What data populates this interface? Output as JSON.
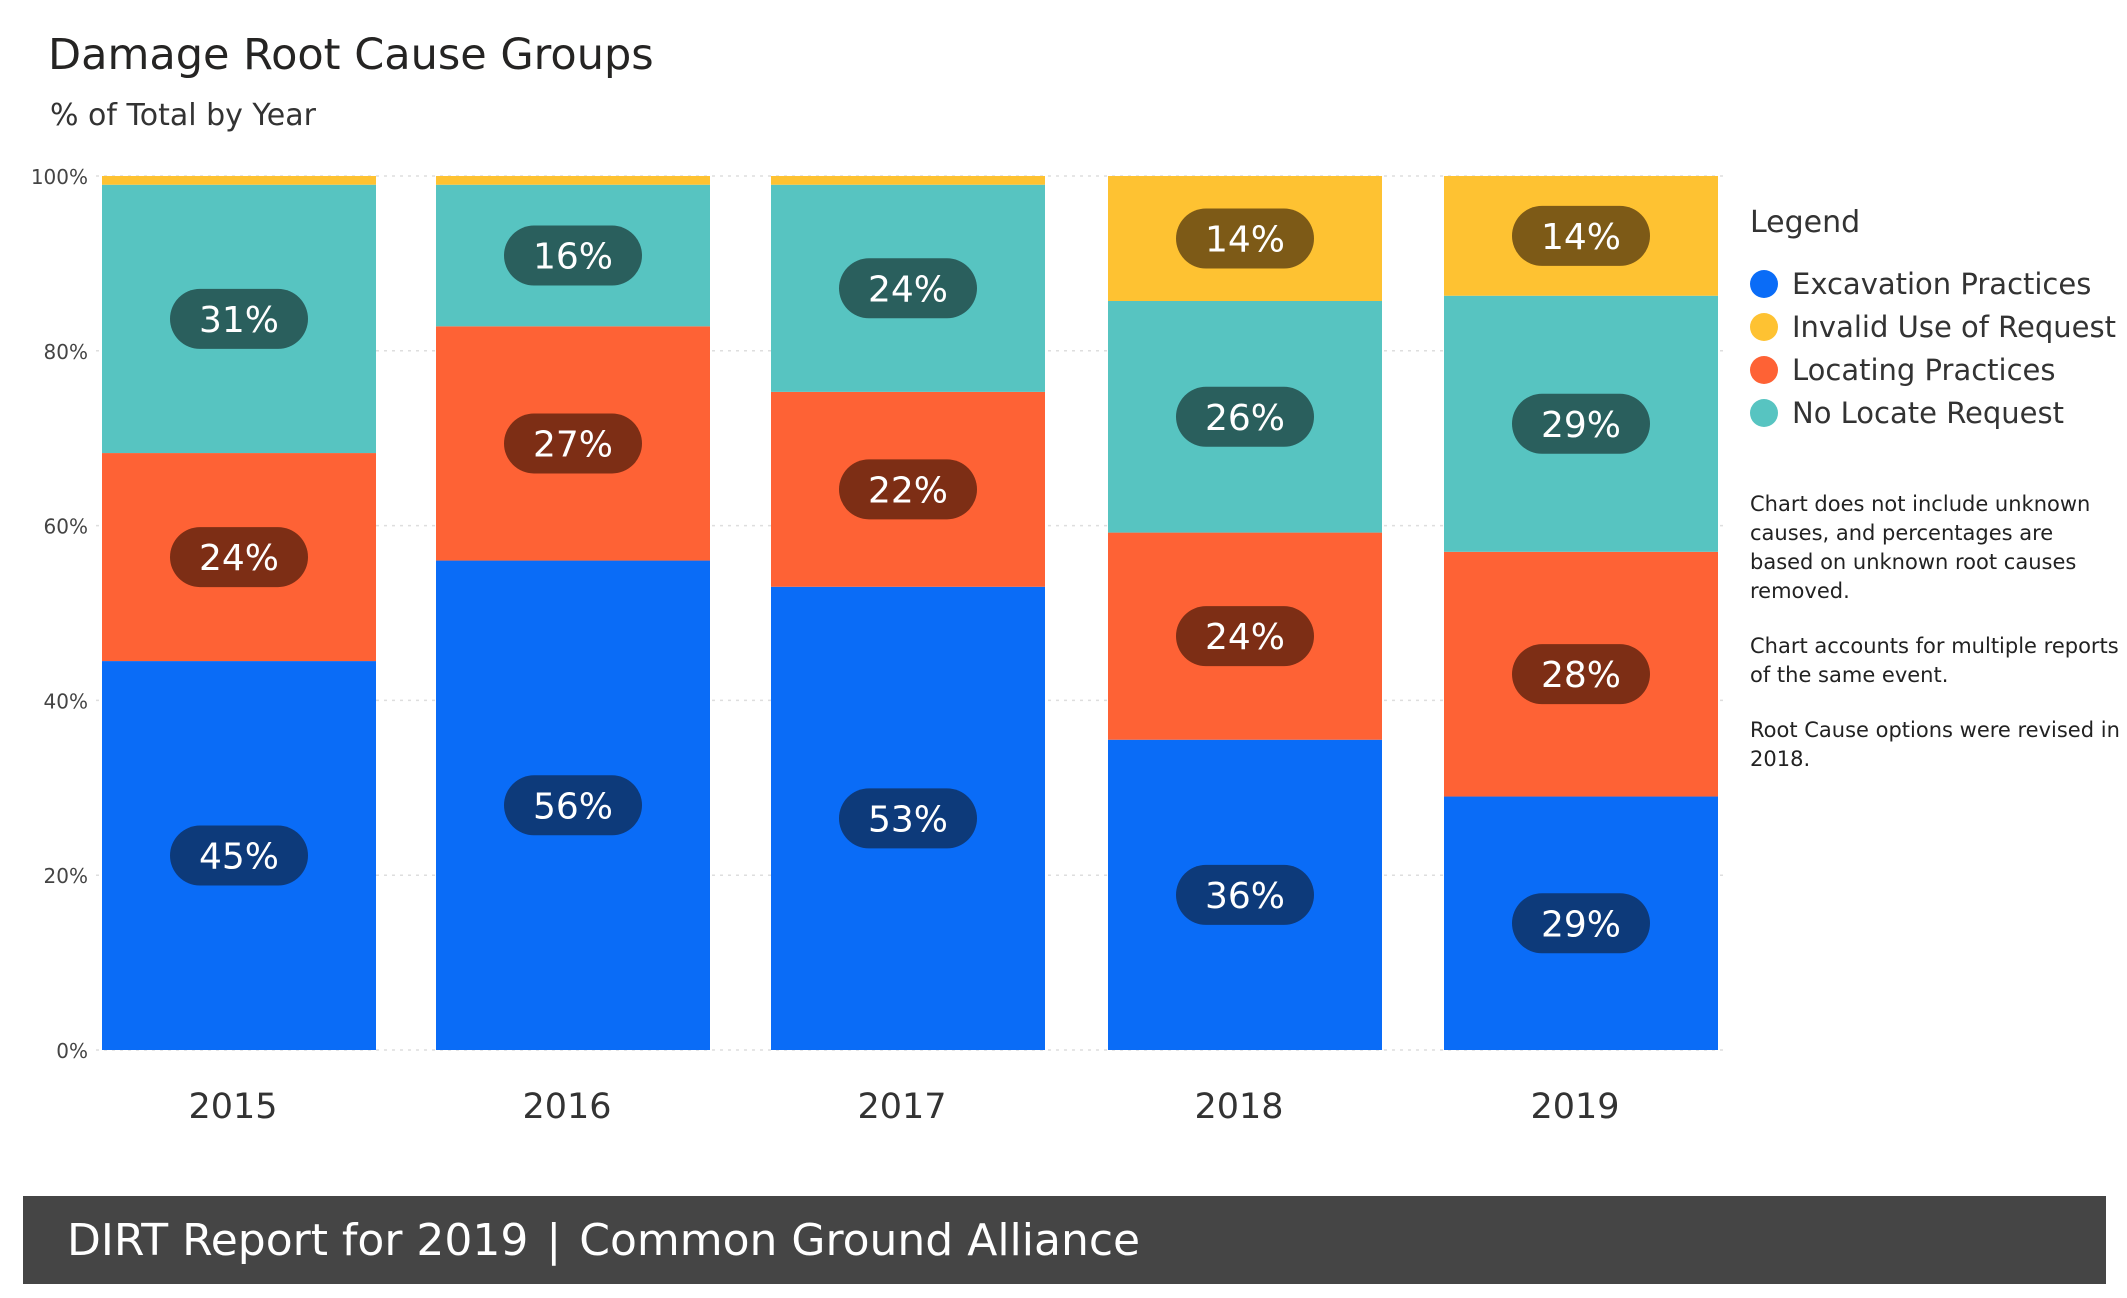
{
  "header": {
    "title": "Damage Root Cause Groups",
    "subtitle": "% of Total by Year"
  },
  "legend": {
    "title": "Legend",
    "items": [
      {
        "label": "Excavation Practices",
        "color": "#0a6cf7"
      },
      {
        "label": "Invalid Use of Request",
        "color": "#fec232"
      },
      {
        "label": "Locating Practices",
        "color": "#fe6235"
      },
      {
        "label": "No Locate Request",
        "color": "#57c4c1"
      }
    ]
  },
  "notes": [
    "Chart does not include unknown causes, and percentages are based on unknown root causes removed.",
    "Chart accounts for multiple reports of the same event.",
    "Root Cause options were revised in 2018."
  ],
  "footer": {
    "left": "DIRT Report for 2019",
    "separator": "|",
    "right": "Common Ground Alliance"
  },
  "chart_data": {
    "type": "bar",
    "stacked": true,
    "title": "Damage Root Cause Groups",
    "subtitle": "% of Total by Year",
    "categories": [
      "2015",
      "2016",
      "2017",
      "2018",
      "2019"
    ],
    "y_ticks": [
      "0%",
      "20%",
      "40%",
      "60%",
      "80%",
      "100%"
    ],
    "ylim": [
      0,
      100
    ],
    "grid": true,
    "legend_position": "right",
    "series": [
      {
        "name": "Excavation Practices",
        "color": "#0a6cf7",
        "label_bg": "#0d3a7a",
        "values": [
          44.5,
          56,
          53,
          35.5,
          29
        ],
        "labels": [
          "45%",
          "56%",
          "53%",
          "36%",
          "29%"
        ]
      },
      {
        "name": "Locating Practices",
        "color": "#fe6235",
        "label_bg": "#7d2e15",
        "values": [
          23.8,
          26.8,
          22.3,
          23.7,
          28
        ],
        "labels": [
          "24%",
          "27%",
          "22%",
          "24%",
          "28%"
        ]
      },
      {
        "name": "No Locate Request",
        "color": "#57c4c1",
        "label_bg": "#2a5f5d",
        "values": [
          30.7,
          16.2,
          23.7,
          26.5,
          29.3
        ],
        "labels": [
          "31%",
          "16%",
          "24%",
          "26%",
          "29%"
        ]
      },
      {
        "name": "Invalid Use of Request",
        "color": "#fec232",
        "label_bg": "#7d5a17",
        "values": [
          1,
          1,
          1,
          14.3,
          13.7
        ],
        "labels": [
          "",
          "",
          "",
          "14%",
          "14%"
        ]
      }
    ]
  }
}
